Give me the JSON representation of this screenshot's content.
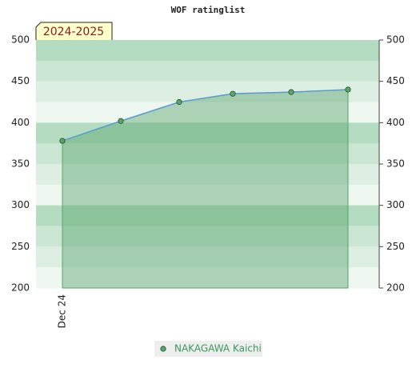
{
  "chart_data": {
    "type": "line",
    "title": "WOF ratinglist",
    "annotation": "2024-2025",
    "categories": [
      "Dec 24",
      null,
      null,
      null,
      null,
      null
    ],
    "series": [
      {
        "name": "NAKAGAWA Kaichi",
        "color": "#5aa46e",
        "line_color": "#5b9bd5",
        "values": [
          378,
          402,
          425,
          435,
          437,
          440
        ]
      }
    ],
    "ylim": [
      200,
      500
    ],
    "yticks": [
      200,
      250,
      300,
      350,
      400,
      450,
      500
    ]
  }
}
